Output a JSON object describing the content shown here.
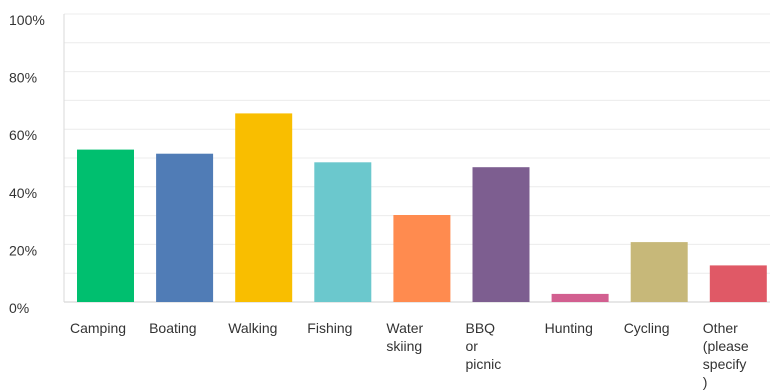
{
  "chart_data": {
    "type": "bar",
    "categories": [
      [
        "Camping"
      ],
      [
        "Boating"
      ],
      [
        "Walking"
      ],
      [
        "Fishing"
      ],
      [
        "Water",
        "skiing"
      ],
      [
        "BBQ",
        "or",
        "picnic"
      ],
      [
        "Hunting"
      ],
      [
        "Cycling"
      ],
      [
        "Other",
        "(please",
        "specify",
        ")"
      ]
    ],
    "values": [
      52.9,
      51.5,
      65.5,
      48.5,
      30.2,
      46.8,
      2.8,
      20.8,
      12.7
    ],
    "colors": [
      "#00bf6f",
      "#507cb6",
      "#f9be00",
      "#6bc8cd",
      "#ff8b4f",
      "#7d5e90",
      "#d25f90",
      "#c7b879",
      "#e05966"
    ],
    "ylim": [
      0,
      100
    ],
    "yticks": [
      "0%",
      "20%",
      "40%",
      "60%",
      "80%",
      "100%"
    ],
    "grid": true
  }
}
